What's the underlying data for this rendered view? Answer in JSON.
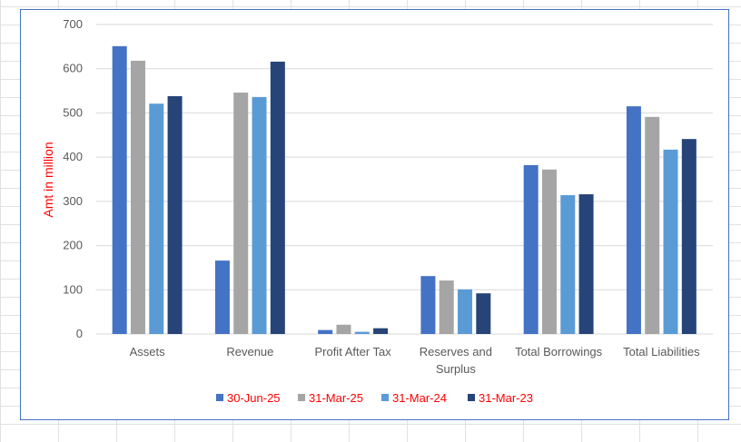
{
  "chart_data": {
    "type": "bar",
    "title": "",
    "xlabel": "",
    "ylabel": "Amt in million",
    "ylim": [
      0,
      700
    ],
    "yticks": [
      0,
      100,
      200,
      300,
      400,
      500,
      600,
      700
    ],
    "grid": true,
    "legend_position": "bottom",
    "categories": [
      "Assets",
      "Revenue",
      "Profit After Tax",
      "Reserves and Surplus",
      "Total Borrowings",
      "Total Liabilities"
    ],
    "series": [
      {
        "name": "30-Jun-25",
        "color": "#4472c4",
        "values": [
          651,
          166,
          9,
          131,
          382,
          515
        ]
      },
      {
        "name": "31-Mar-25",
        "color": "#a5a5a5",
        "values": [
          618,
          546,
          21,
          121,
          372,
          491
        ]
      },
      {
        "name": "31-Mar-24",
        "color": "#5b9bd5",
        "values": [
          521,
          536,
          5,
          101,
          314,
          417
        ]
      },
      {
        "name": "31-Mar-23",
        "color": "#264478",
        "values": [
          538,
          616,
          13,
          92,
          316,
          441
        ]
      }
    ]
  }
}
